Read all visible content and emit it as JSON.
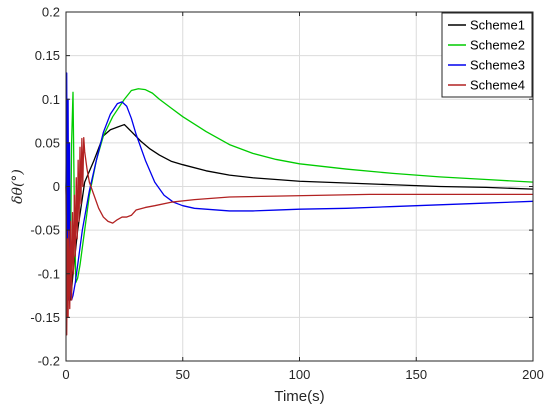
{
  "chart_data": {
    "type": "line",
    "title": "",
    "xlabel": "Time(s)",
    "ylabel": "δθ(°)",
    "xlim": [
      0,
      200
    ],
    "ylim": [
      -0.2,
      0.2
    ],
    "xticks": [
      0,
      50,
      100,
      150,
      200
    ],
    "yticks": [
      -0.2,
      -0.15,
      -0.1,
      -0.05,
      0,
      0.05,
      0.1,
      0.15,
      0.2
    ],
    "xtick_labels": [
      "0",
      "50",
      "100",
      "150",
      "200"
    ],
    "ytick_labels": [
      "-0.2",
      "-0.15",
      "-0.1",
      "-0.05",
      "0",
      "0.05",
      "0.1",
      "0.15",
      "0.2"
    ],
    "grid": true,
    "legend_position": "top-right",
    "series": [
      {
        "name": "Scheme1",
        "color": "#000000",
        "x": [
          0,
          0.5,
          1,
          2,
          3,
          5,
          8,
          12,
          16,
          19,
          22,
          25,
          28,
          32,
          36,
          40,
          45,
          50,
          60,
          70,
          80,
          90,
          100,
          120,
          140,
          160,
          180,
          200
        ],
        "y": [
          0,
          -0.08,
          -0.12,
          -0.13,
          -0.1,
          -0.05,
          0.005,
          0.03,
          0.058,
          0.065,
          0.068,
          0.071,
          0.063,
          0.052,
          0.043,
          0.036,
          0.029,
          0.025,
          0.018,
          0.013,
          0.01,
          0.008,
          0.006,
          0.004,
          0.002,
          0.0,
          -0.001,
          -0.003
        ]
      },
      {
        "name": "Scheme2",
        "color": "#00cc00",
        "x": [
          0,
          0.6,
          1.2,
          1.8,
          2.4,
          3,
          3.6,
          4.2,
          5,
          6,
          7,
          8,
          10,
          13,
          16,
          20,
          25,
          28,
          31,
          34,
          37,
          40,
          45,
          50,
          60,
          70,
          80,
          90,
          100,
          120,
          140,
          160,
          180,
          200
        ],
        "y": [
          0,
          0.05,
          -0.05,
          -0.12,
          0.05,
          0.108,
          -0.03,
          -0.11,
          -0.105,
          -0.09,
          -0.07,
          -0.05,
          -0.01,
          0.03,
          0.058,
          0.08,
          0.1,
          0.11,
          0.112,
          0.111,
          0.107,
          0.1,
          0.09,
          0.08,
          0.063,
          0.048,
          0.038,
          0.031,
          0.026,
          0.02,
          0.015,
          0.011,
          0.008,
          0.005
        ]
      },
      {
        "name": "Scheme3",
        "color": "#0000ee",
        "x": [
          0,
          0.3,
          0.6,
          0.9,
          1.2,
          1.5,
          1.8,
          2.1,
          2.4,
          3,
          4,
          5,
          6,
          7,
          8,
          10,
          13,
          16,
          19,
          22,
          24,
          26,
          28,
          30,
          34,
          38,
          42,
          46,
          50,
          55,
          60,
          70,
          80,
          90,
          100,
          120,
          140,
          160,
          180,
          200
        ],
        "y": [
          0,
          0.13,
          -0.1,
          0.1,
          -0.13,
          0.05,
          -0.125,
          -0.12,
          -0.13,
          -0.125,
          -0.11,
          -0.09,
          -0.07,
          -0.05,
          -0.035,
          -0.005,
          0.03,
          0.062,
          0.083,
          0.095,
          0.097,
          0.092,
          0.078,
          0.06,
          0.03,
          0.005,
          -0.01,
          -0.018,
          -0.022,
          -0.025,
          -0.026,
          -0.028,
          -0.028,
          -0.027,
          -0.026,
          -0.025,
          -0.023,
          -0.021,
          -0.019,
          -0.017
        ]
      },
      {
        "name": "Scheme4",
        "color": "#b22222",
        "x": [
          0,
          0.3,
          0.6,
          0.9,
          1.2,
          1.6,
          2.0,
          2.4,
          2.8,
          3.2,
          3.6,
          4.0,
          4.4,
          4.8,
          5.2,
          5.6,
          6.0,
          6.4,
          6.8,
          7.2,
          7.6,
          8,
          9,
          10,
          12,
          14,
          16,
          18,
          20,
          22,
          24,
          26,
          28,
          30,
          34,
          38,
          45,
          55,
          70,
          90,
          110,
          130,
          150,
          170,
          200
        ],
        "y": [
          0,
          -0.17,
          -0.06,
          -0.15,
          -0.05,
          -0.14,
          -0.04,
          -0.13,
          -0.03,
          -0.1,
          -0.01,
          -0.08,
          0.01,
          -0.06,
          0.03,
          -0.04,
          0.045,
          -0.02,
          0.055,
          0.0,
          0.056,
          0.04,
          0.02,
          0.005,
          -0.01,
          -0.025,
          -0.035,
          -0.04,
          -0.042,
          -0.038,
          -0.035,
          -0.035,
          -0.033,
          -0.027,
          -0.024,
          -0.022,
          -0.018,
          -0.015,
          -0.012,
          -0.011,
          -0.01,
          -0.009,
          -0.009,
          -0.009,
          -0.009
        ]
      }
    ]
  }
}
